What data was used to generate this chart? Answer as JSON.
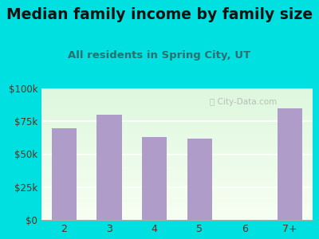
{
  "title": "Median family income by family size",
  "subtitle": "All residents in Spring City, UT",
  "categories": [
    "2",
    "3",
    "4",
    "5",
    "6",
    "7+"
  ],
  "values": [
    70000,
    80000,
    63000,
    62000,
    0,
    85000
  ],
  "bar_color": "#b09cc8",
  "background_color": "#00e0e0",
  "title_color": "#111111",
  "subtitle_color": "#2a7070",
  "tick_color": "#5a3020",
  "ylim": [
    0,
    100000
  ],
  "yticks": [
    0,
    25000,
    50000,
    75000,
    100000
  ],
  "ytick_labels": [
    "$0",
    "$25k",
    "$50k",
    "$75k",
    "$100k"
  ],
  "title_fontsize": 13.5,
  "subtitle_fontsize": 9.5,
  "watermark": "Ⓜ City-Data.com"
}
